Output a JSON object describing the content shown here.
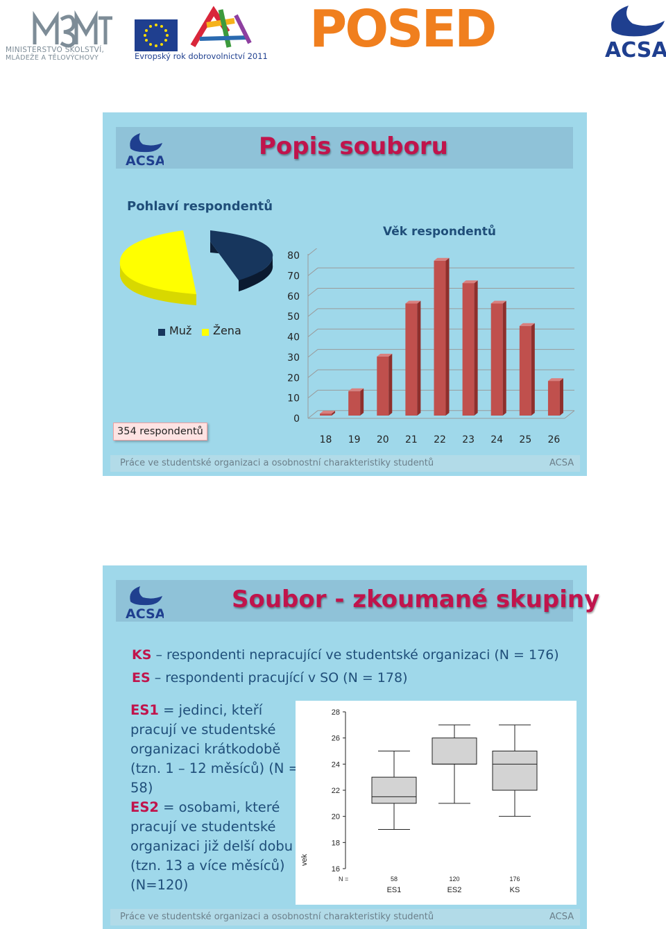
{
  "header": {
    "msmt_line1": "MINISTERSTVO ŠKOLSTVÍ,",
    "msmt_line2": "MLÁDEŽE A TĚLOVÝCHOVY",
    "eu_text": "Evropský rok dobrovolnictví 2011",
    "posed_text": "POSED",
    "acsa_text": "ACSA"
  },
  "slide1": {
    "title": "Popis souboru",
    "logo_text": "ACSA",
    "pie_title": "Pohlaví respondentů",
    "legend": [
      {
        "label": "Muž",
        "color": "#17365d"
      },
      {
        "label": "Žena",
        "color": "#ffff00"
      }
    ],
    "respondents_box": "354 respondentů",
    "bar_title": "Věk respondentů",
    "footer_left": "Práce ve studentské organizaci a osobnostní charakteristiky studentů",
    "footer_right": "ACSA"
  },
  "chart_data": [
    {
      "type": "pie",
      "title": "Pohlaví respondentů",
      "categories": [
        "Muž",
        "Žena"
      ],
      "values": [
        178,
        176
      ],
      "colors": [
        "#17365d",
        "#ffff00"
      ]
    },
    {
      "type": "bar",
      "title": "Věk respondentů",
      "categories": [
        "18",
        "19",
        "20",
        "21",
        "22",
        "23",
        "24",
        "25",
        "26"
      ],
      "values": [
        1,
        12,
        29,
        55,
        76,
        65,
        55,
        44,
        17
      ],
      "ylim": [
        0,
        80
      ],
      "yticks": [
        0,
        10,
        20,
        30,
        40,
        50,
        60,
        70,
        80
      ],
      "color": "#c0504d",
      "grid": true
    },
    {
      "type": "boxplot",
      "ylabel": "vek",
      "ylim": [
        16,
        28
      ],
      "yticks": [
        16,
        18,
        20,
        22,
        24,
        26,
        28
      ],
      "n_label": "N =",
      "groups": [
        {
          "name": "ES1",
          "n": "58",
          "min": 19,
          "q1": 21,
          "median": 21.5,
          "q3": 23,
          "max": 25
        },
        {
          "name": "ES2",
          "n": "120",
          "min": 21,
          "q1": 24,
          "median": 24,
          "q3": 26,
          "max": 27
        },
        {
          "name": "KS",
          "n": "176",
          "min": 20,
          "q1": 22,
          "median": 24,
          "q3": 25,
          "max": 27
        }
      ]
    }
  ],
  "slide2": {
    "title": "Soubor - zkoumané skupiny",
    "logo_text": "ACSA",
    "ks_abbr": "KS",
    "ks_text": " – respondenti nepracující ve studentské organizaci (N = 176)",
    "es_abbr": "ES",
    "es_text": " – respondenti pracující v SO (N = 178)",
    "es1_abbr": "ES1",
    "es1_lines": [
      " = jedinci, kteří",
      "pracují ve studentské",
      "organizaci krátkodobě",
      "(tzn. 1 – 12 měsíců) (N =",
      "58)"
    ],
    "es2_abbr": "ES2",
    "es2_lines": [
      " = osobami, které",
      "pracují ve studentské",
      "organizaci již delší dobu",
      "(tzn. 13 a více měsíců)",
      "(N=120)"
    ],
    "footer_left": "Práce ve studentské organizaci a osobnostní charakteristiky studentů",
    "footer_right": "ACSA"
  }
}
